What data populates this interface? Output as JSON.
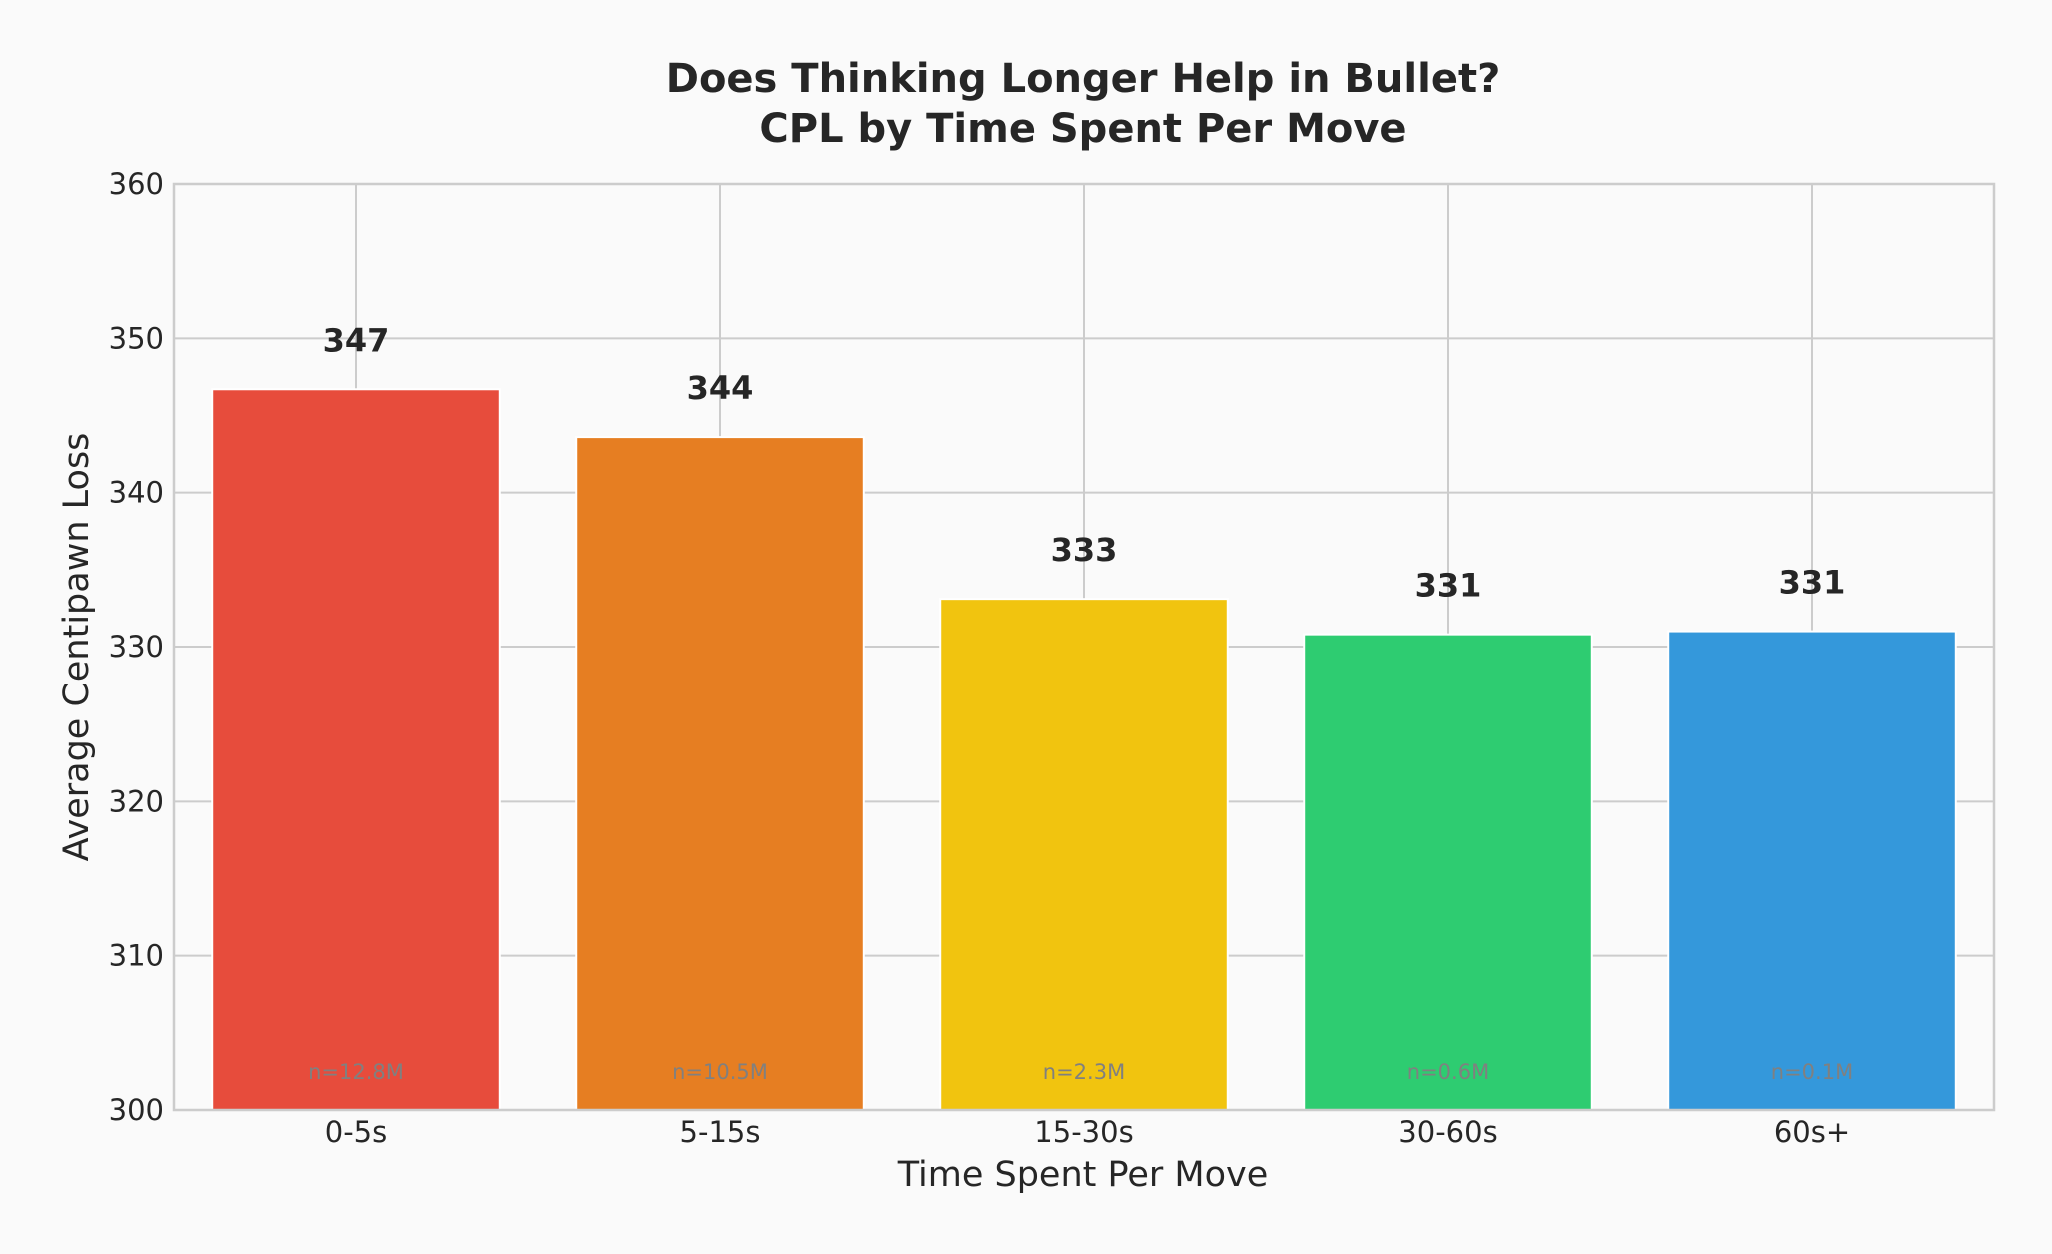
{
  "chart_data": {
    "type": "bar",
    "title_line1": "Does Thinking Longer Help in Bullet?",
    "title_line2": "CPL by Time Spent Per Move",
    "xlabel": "Time Spent Per Move",
    "ylabel": "Average Centipawn Loss",
    "ylim": [
      300,
      360
    ],
    "yticks": [
      300,
      310,
      320,
      330,
      340,
      350,
      360
    ],
    "grid": true,
    "categories": [
      "0-5s",
      "5-15s",
      "15-30s",
      "30-60s",
      "60s+"
    ],
    "values": [
      346.7,
      343.6,
      333.1,
      330.8,
      331.0
    ],
    "value_labels": [
      "347",
      "344",
      "333",
      "331",
      "331"
    ],
    "sample_labels": [
      "n=12.8M",
      "n=10.5M",
      "n=2.3M",
      "n=0.6M",
      "n=0.1M"
    ],
    "colors": [
      "#e74c3c",
      "#e67e22",
      "#f1c40f",
      "#2ecc71",
      "#3498db"
    ]
  }
}
